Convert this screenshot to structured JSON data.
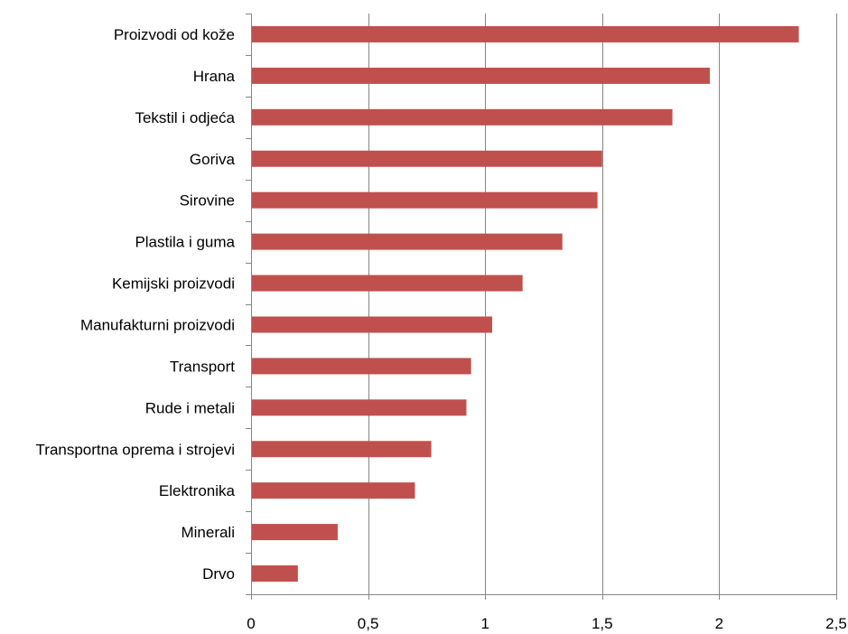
{
  "chart_data": {
    "type": "bar",
    "orientation": "horizontal",
    "categories": [
      "Proizvodi od kože",
      "Hrana",
      "Tekstil i odjeća",
      "Goriva",
      "Sirovine",
      "Plastila i guma",
      "Kemijski proizvodi",
      "Manufakturni proizvodi",
      "Transport",
      "Rude i metali",
      "Transportna oprema i strojevi",
      "Elektronika",
      "Minerali",
      "Drvo"
    ],
    "series": [
      {
        "values": [
          2.34,
          1.96,
          1.8,
          1.5,
          1.48,
          1.33,
          1.16,
          1.03,
          0.94,
          0.92,
          0.77,
          0.7,
          0.37,
          0.2
        ]
      }
    ],
    "xlim": [
      0,
      2.5
    ],
    "x_ticks": [
      {
        "value": 0,
        "label": "0"
      },
      {
        "value": 0.5,
        "label": "0,5"
      },
      {
        "value": 1,
        "label": "1"
      },
      {
        "value": 1.5,
        "label": "1,5"
      },
      {
        "value": 2,
        "label": "2"
      },
      {
        "value": 2.5,
        "label": "2,5"
      }
    ],
    "grid": "vertical",
    "legend": "none",
    "colors": {
      "bar": "#c0504d",
      "grid": "#868686",
      "axis": "#868686"
    }
  }
}
